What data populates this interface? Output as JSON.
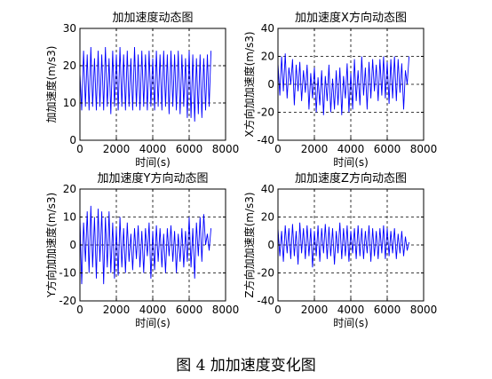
{
  "caption": "图 4  加加速度变化图",
  "chart_data": [
    {
      "type": "line",
      "title": "加加速度动态图",
      "xlabel": "时间(s)",
      "ylabel": "加加速度(m/s3)",
      "xlim": [
        0,
        8000
      ],
      "ylim": [
        0,
        30
      ],
      "xticks": [
        0,
        2000,
        4000,
        6000,
        8000
      ],
      "yticks": [
        0,
        10,
        20,
        30
      ],
      "grid": true,
      "color": "#0000ff",
      "series": [
        {
          "x": [
            0,
            100,
            200,
            300,
            400,
            500,
            600,
            700,
            800,
            900,
            1000,
            1100,
            1200,
            1300,
            1400,
            1500,
            1600,
            1700,
            1800,
            1900,
            2000,
            2100,
            2200,
            2300,
            2400,
            2500,
            2600,
            2700,
            2800,
            2900,
            3000,
            3100,
            3200,
            3300,
            3400,
            3500,
            3600,
            3700,
            3800,
            3900,
            4000,
            4100,
            4200,
            4300,
            4400,
            4500,
            4600,
            4700,
            4800,
            4900,
            5000,
            5100,
            5200,
            5300,
            5400,
            5500,
            5600,
            5700,
            5800,
            5900,
            6000,
            6100,
            6200,
            6300,
            6400,
            6500,
            6600,
            6700,
            6800,
            6900,
            7000,
            7100,
            7200
          ],
          "values": [
            18,
            8,
            24,
            9,
            23,
            8,
            25,
            9,
            22,
            8,
            24,
            9,
            23,
            8,
            25,
            9,
            22,
            7,
            24,
            9,
            23,
            8,
            25,
            9,
            23,
            8,
            24,
            9,
            22,
            8,
            25,
            9,
            23,
            8,
            24,
            9,
            23,
            8,
            24,
            9,
            22,
            8,
            24,
            9,
            23,
            8,
            24,
            9,
            23,
            7,
            24,
            9,
            23,
            8,
            24,
            7,
            23,
            9,
            22,
            6,
            24,
            6,
            23,
            5,
            22,
            7,
            23,
            6,
            22,
            8,
            23,
            9,
            24
          ]
        }
      ]
    },
    {
      "type": "line",
      "title": "加加速度X方向动态图",
      "xlabel": "时间(s)",
      "ylabel": "X方向加加速度(m/s3)",
      "xlim": [
        0,
        8000
      ],
      "ylim": [
        -40,
        40
      ],
      "xticks": [
        0,
        2000,
        4000,
        6000,
        8000
      ],
      "yticks": [
        -40,
        -20,
        0,
        20,
        40
      ],
      "grid": true,
      "color": "#0000ff",
      "series": [
        {
          "x": [
            0,
            100,
            200,
            300,
            400,
            500,
            600,
            700,
            800,
            900,
            1000,
            1100,
            1200,
            1300,
            1400,
            1500,
            1600,
            1700,
            1800,
            1900,
            2000,
            2100,
            2200,
            2300,
            2400,
            2500,
            2600,
            2700,
            2800,
            2900,
            3000,
            3100,
            3200,
            3300,
            3400,
            3500,
            3600,
            3700,
            3800,
            3900,
            4000,
            4100,
            4200,
            4300,
            4400,
            4500,
            4600,
            4700,
            4800,
            4900,
            5000,
            5100,
            5200,
            5300,
            5400,
            5500,
            5600,
            5700,
            5800,
            5900,
            6000,
            6100,
            6200,
            6300,
            6400,
            6500,
            6600,
            6700,
            6800,
            6900,
            7000,
            7100,
            7200
          ],
          "values": [
            15,
            -8,
            20,
            -5,
            22,
            -10,
            12,
            0,
            18,
            -15,
            14,
            -5,
            16,
            -12,
            10,
            -6,
            14,
            -18,
            8,
            -10,
            12,
            -20,
            5,
            -15,
            10,
            -22,
            6,
            -12,
            14,
            -20,
            4,
            -18,
            10,
            -15,
            12,
            -22,
            6,
            -10,
            15,
            -20,
            8,
            -18,
            18,
            -12,
            10,
            -15,
            20,
            -8,
            12,
            -18,
            16,
            -10,
            18,
            -5,
            14,
            -12,
            18,
            -8,
            20,
            -10,
            16,
            -14,
            18,
            -10,
            20,
            -12,
            18,
            -6,
            15,
            -18,
            10,
            0,
            20
          ]
        }
      ]
    },
    {
      "type": "line",
      "title": "加加速度Y方向动态图",
      "xlabel": "时间(s)",
      "ylabel": "Y方向加加速度(m/s3)",
      "xlim": [
        0,
        8000
      ],
      "ylim": [
        -20,
        20
      ],
      "xticks": [
        0,
        2000,
        4000,
        6000,
        8000
      ],
      "yticks": [
        -20,
        -10,
        0,
        10,
        20
      ],
      "grid": true,
      "color": "#0000ff",
      "series": [
        {
          "x": [
            0,
            100,
            200,
            300,
            400,
            500,
            600,
            700,
            800,
            900,
            1000,
            1100,
            1200,
            1300,
            1400,
            1500,
            1600,
            1700,
            1800,
            1900,
            2000,
            2100,
            2200,
            2300,
            2400,
            2500,
            2600,
            2700,
            2800,
            2900,
            3000,
            3100,
            3200,
            3300,
            3400,
            3500,
            3600,
            3700,
            3800,
            3900,
            4000,
            4100,
            4200,
            4300,
            4400,
            4500,
            4600,
            4700,
            4800,
            4900,
            5000,
            5100,
            5200,
            5300,
            5400,
            5500,
            5600,
            5700,
            5800,
            5900,
            6000,
            6100,
            6200,
            6300,
            6400,
            6500,
            6600,
            6700,
            6800,
            6900,
            7000,
            7100,
            7200
          ],
          "values": [
            10,
            -14,
            8,
            -6,
            12,
            -10,
            14,
            -8,
            10,
            -12,
            13,
            -6,
            12,
            -14,
            10,
            -8,
            12,
            -10,
            8,
            -12,
            6,
            -11,
            10,
            -8,
            6,
            -10,
            8,
            -6,
            4,
            -9,
            6,
            -5,
            7,
            -8,
            5,
            -10,
            6,
            -4,
            8,
            -12,
            5,
            -9,
            7,
            -6,
            6,
            -8,
            4,
            -10,
            6,
            -4,
            7,
            -6,
            5,
            -10,
            4,
            -6,
            6,
            -8,
            5,
            -6,
            10,
            -8,
            6,
            -12,
            8,
            -4,
            10,
            -6,
            11,
            0,
            4,
            -2,
            6
          ]
        }
      ]
    },
    {
      "type": "line",
      "title": "加加速度Z方向动态图",
      "xlabel": "时间(s)",
      "ylabel": "Z方向加加速度(m/s3)",
      "xlim": [
        0,
        8000
      ],
      "ylim": [
        -40,
        40
      ],
      "xticks": [
        0,
        2000,
        4000,
        6000,
        8000
      ],
      "yticks": [
        -40,
        -20,
        0,
        20,
        40
      ],
      "grid": true,
      "color": "#0000ff",
      "series": [
        {
          "x": [
            0,
            100,
            200,
            300,
            400,
            500,
            600,
            700,
            800,
            900,
            1000,
            1100,
            1200,
            1300,
            1400,
            1500,
            1600,
            1700,
            1800,
            1900,
            2000,
            2100,
            2200,
            2300,
            2400,
            2500,
            2600,
            2700,
            2800,
            2900,
            3000,
            3100,
            3200,
            3300,
            3400,
            3500,
            3600,
            3700,
            3800,
            3900,
            4000,
            4100,
            4200,
            4300,
            4400,
            4500,
            4600,
            4700,
            4800,
            4900,
            5000,
            5100,
            5200,
            5300,
            5400,
            5500,
            5600,
            5700,
            5800,
            5900,
            6000,
            6100,
            6200,
            6300,
            6400,
            6500,
            6600,
            6700,
            6800,
            6900,
            7000,
            7100,
            7200
          ],
          "values": [
            12,
            -8,
            10,
            -12,
            14,
            -6,
            12,
            -10,
            15,
            -8,
            10,
            -14,
            16,
            -6,
            12,
            -10,
            14,
            -8,
            12,
            -16,
            10,
            -8,
            14,
            -12,
            12,
            -6,
            15,
            -10,
            13,
            -8,
            12,
            -14,
            10,
            -6,
            16,
            -10,
            12,
            -8,
            14,
            -12,
            10,
            -6,
            12,
            -10,
            14,
            -8,
            12,
            -10,
            10,
            -6,
            14,
            -12,
            12,
            -8,
            10,
            -10,
            12,
            -6,
            14,
            -10,
            12,
            -8,
            10,
            -6,
            12,
            -10,
            8,
            -6,
            10,
            -8,
            6,
            -4,
            2
          ]
        }
      ]
    }
  ]
}
